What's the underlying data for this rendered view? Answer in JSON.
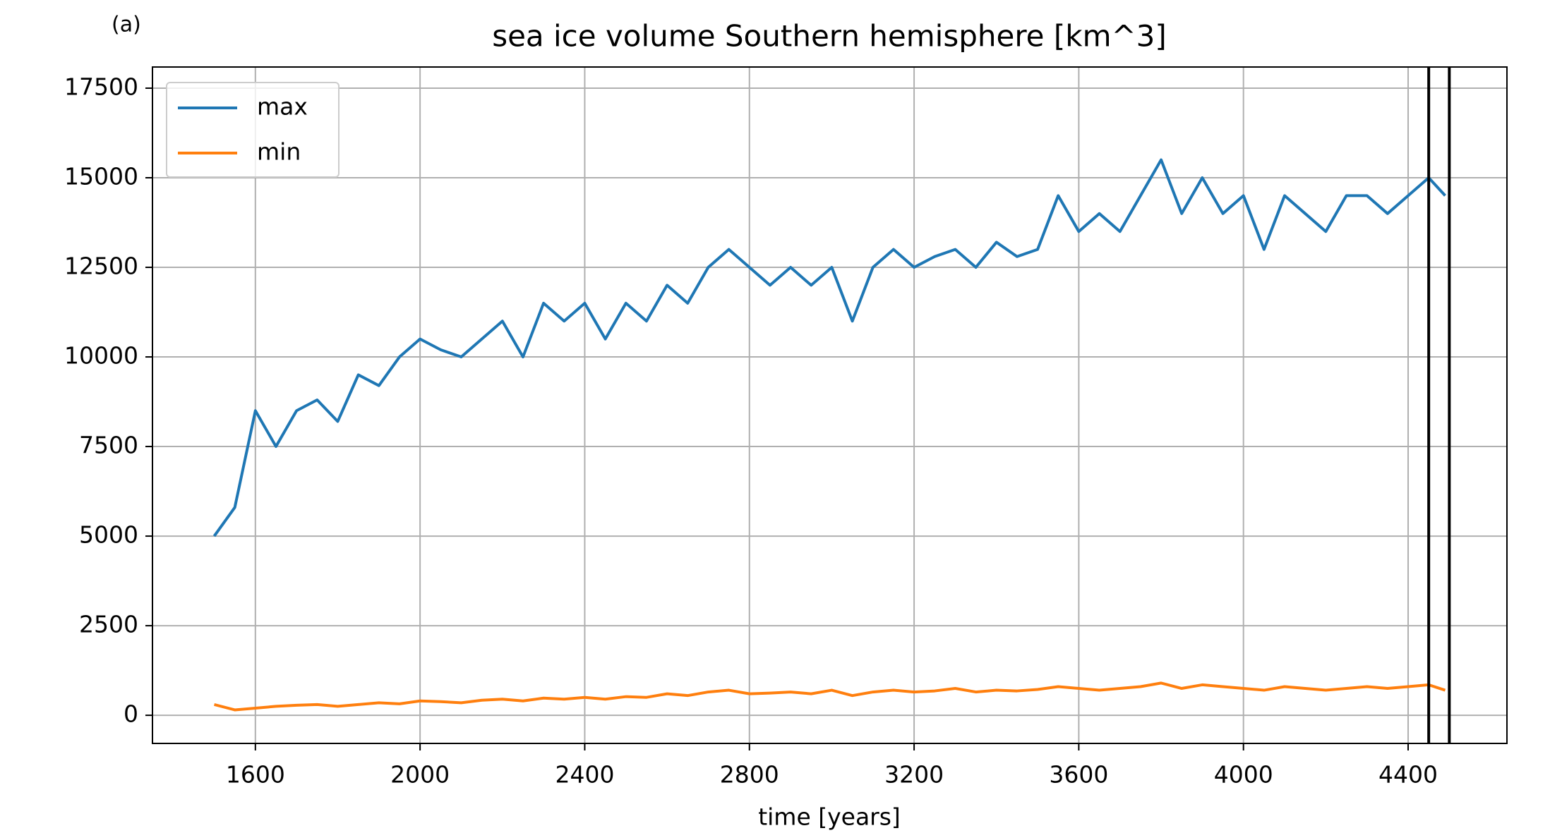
{
  "chart_data": {
    "type": "line",
    "panel_label": "(a)",
    "title": "sea ice volume Southern hemisphere [km^3]",
    "xlabel": "time [years]",
    "x": [
      1500,
      1550,
      1600,
      1650,
      1700,
      1750,
      1800,
      1850,
      1900,
      1950,
      2000,
      2050,
      2100,
      2150,
      2200,
      2250,
      2300,
      2350,
      2400,
      2450,
      2500,
      2550,
      2600,
      2650,
      2700,
      2750,
      2800,
      2850,
      2900,
      2950,
      3000,
      3050,
      3100,
      3150,
      3200,
      3250,
      3300,
      3350,
      3400,
      3450,
      3500,
      3550,
      3600,
      3650,
      3700,
      3750,
      3800,
      3850,
      3900,
      3950,
      4000,
      4050,
      4100,
      4150,
      4200,
      4250,
      4300,
      4350,
      4400,
      4450,
      4490
    ],
    "series": [
      {
        "name": "max",
        "color": "#1f77b4",
        "values": [
          5000,
          5800,
          8500,
          7500,
          8500,
          8800,
          8200,
          9500,
          9200,
          10000,
          10500,
          10200,
          10000,
          10500,
          11000,
          10000,
          11500,
          11000,
          11500,
          10500,
          11500,
          11000,
          12000,
          11500,
          12500,
          13000,
          12500,
          12000,
          12500,
          12000,
          12500,
          11000,
          12500,
          13000,
          12500,
          12800,
          13000,
          12500,
          13200,
          12800,
          13000,
          14500,
          13500,
          14000,
          13500,
          14500,
          15500,
          14000,
          15000,
          14000,
          14500,
          13000,
          14500,
          14000,
          13500,
          14500,
          14500,
          14000,
          14500,
          15000,
          14500
        ]
      },
      {
        "name": "min",
        "color": "#ff7f0e",
        "values": [
          300,
          150,
          200,
          250,
          280,
          300,
          250,
          300,
          350,
          320,
          400,
          380,
          350,
          420,
          450,
          400,
          480,
          450,
          500,
          450,
          520,
          500,
          600,
          550,
          650,
          700,
          600,
          620,
          650,
          600,
          700,
          550,
          650,
          700,
          650,
          680,
          750,
          650,
          700,
          680,
          720,
          800,
          750,
          700,
          750,
          800,
          900,
          750,
          850,
          800,
          750,
          700,
          800,
          750,
          700,
          750,
          800,
          750,
          800,
          850,
          700
        ]
      }
    ],
    "vlines": [
      4450,
      4500
    ],
    "xlim": [
      1350,
      4640
    ],
    "ylim": [
      -785,
      18090
    ],
    "xticks": [
      1600,
      2000,
      2400,
      2800,
      3200,
      3600,
      4000,
      4400
    ],
    "yticks": [
      0,
      2500,
      5000,
      7500,
      10000,
      12500,
      15000,
      17500
    ],
    "grid": true,
    "legend": "upper left"
  }
}
